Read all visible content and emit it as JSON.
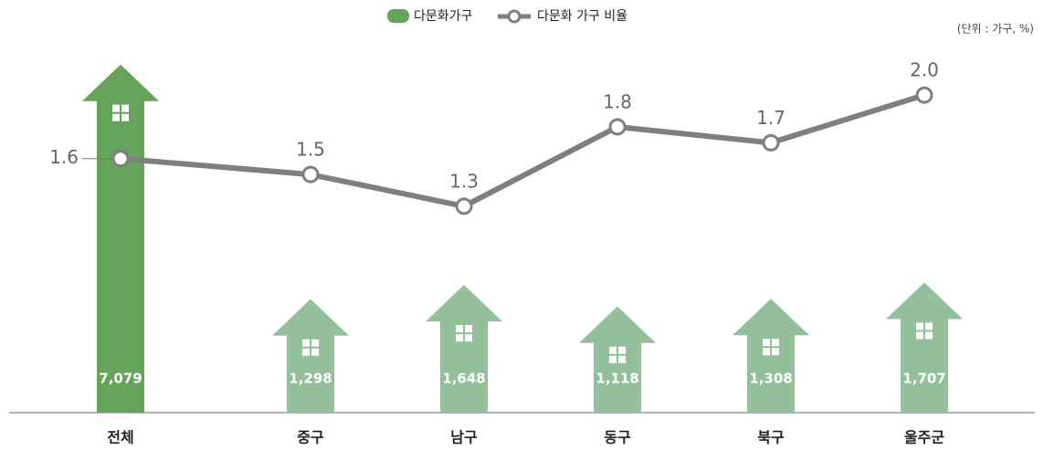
{
  "chart_data": {
    "type": "bar",
    "unit_note": "(단위 : 가구, %)",
    "categories": [
      "전체",
      "중구",
      "남구",
      "동구",
      "북구",
      "울주군"
    ],
    "series": [
      {
        "name": "다문화가구",
        "color": "#93c09a",
        "highlight_color": "#66a35b",
        "values": [
          7079,
          1298,
          1648,
          1118,
          1308,
          1707
        ],
        "value_labels": [
          "7,079",
          "1,298",
          "1,648",
          "1,118",
          "1,308",
          "1,707"
        ]
      },
      {
        "name": "다문화 가구 비율",
        "type": "line",
        "axis": "y2",
        "color": "#7f7f7f",
        "values": [
          1.6,
          1.5,
          1.3,
          1.8,
          1.7,
          2.0
        ],
        "value_labels": [
          "1.6",
          "1.5",
          "1.3",
          "1.8",
          "1.7",
          "2.0"
        ]
      }
    ],
    "ylim": [
      -1500,
      7500
    ],
    "y2lim": [
      0,
      2.3
    ]
  }
}
